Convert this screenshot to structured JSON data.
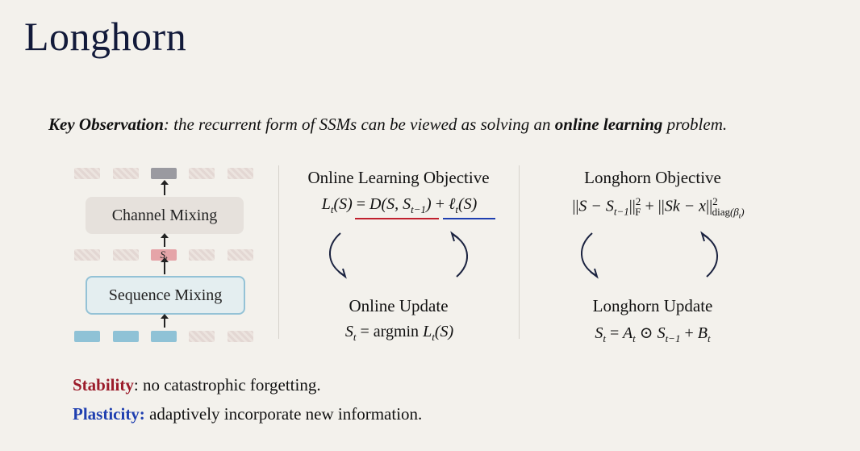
{
  "title": "Longhorn",
  "key_observation": {
    "label": "Key Observation",
    "text_before": ": the recurrent form of SSMs can be viewed as solving an ",
    "emphasis": "online learning",
    "text_after": " problem."
  },
  "diagram": {
    "channel_mixing": "Channel Mixing",
    "sequence_mixing": "Sequence Mixing",
    "state_label": "S",
    "state_sub": "t",
    "colors": {
      "token_out": "#9a9aa0",
      "token_in": "#8fc2d6",
      "state": "#e5a4a8",
      "box_border": "#94c2d6"
    }
  },
  "online": {
    "objective_title": "Online Learning Objective",
    "update_title": "Online Update",
    "underline_colors": {
      "stability": "#c0202e",
      "plasticity": "#1f3fb0"
    }
  },
  "longhorn": {
    "objective_title": "Longhorn Objective",
    "update_title": "Longhorn Update"
  },
  "bullets": {
    "stability_label": "Stability",
    "stability_text": ":  no catastrophic forgetting.",
    "plasticity_label": "Plasticity:",
    "plasticity_text": "  adaptively incorporate new information."
  }
}
